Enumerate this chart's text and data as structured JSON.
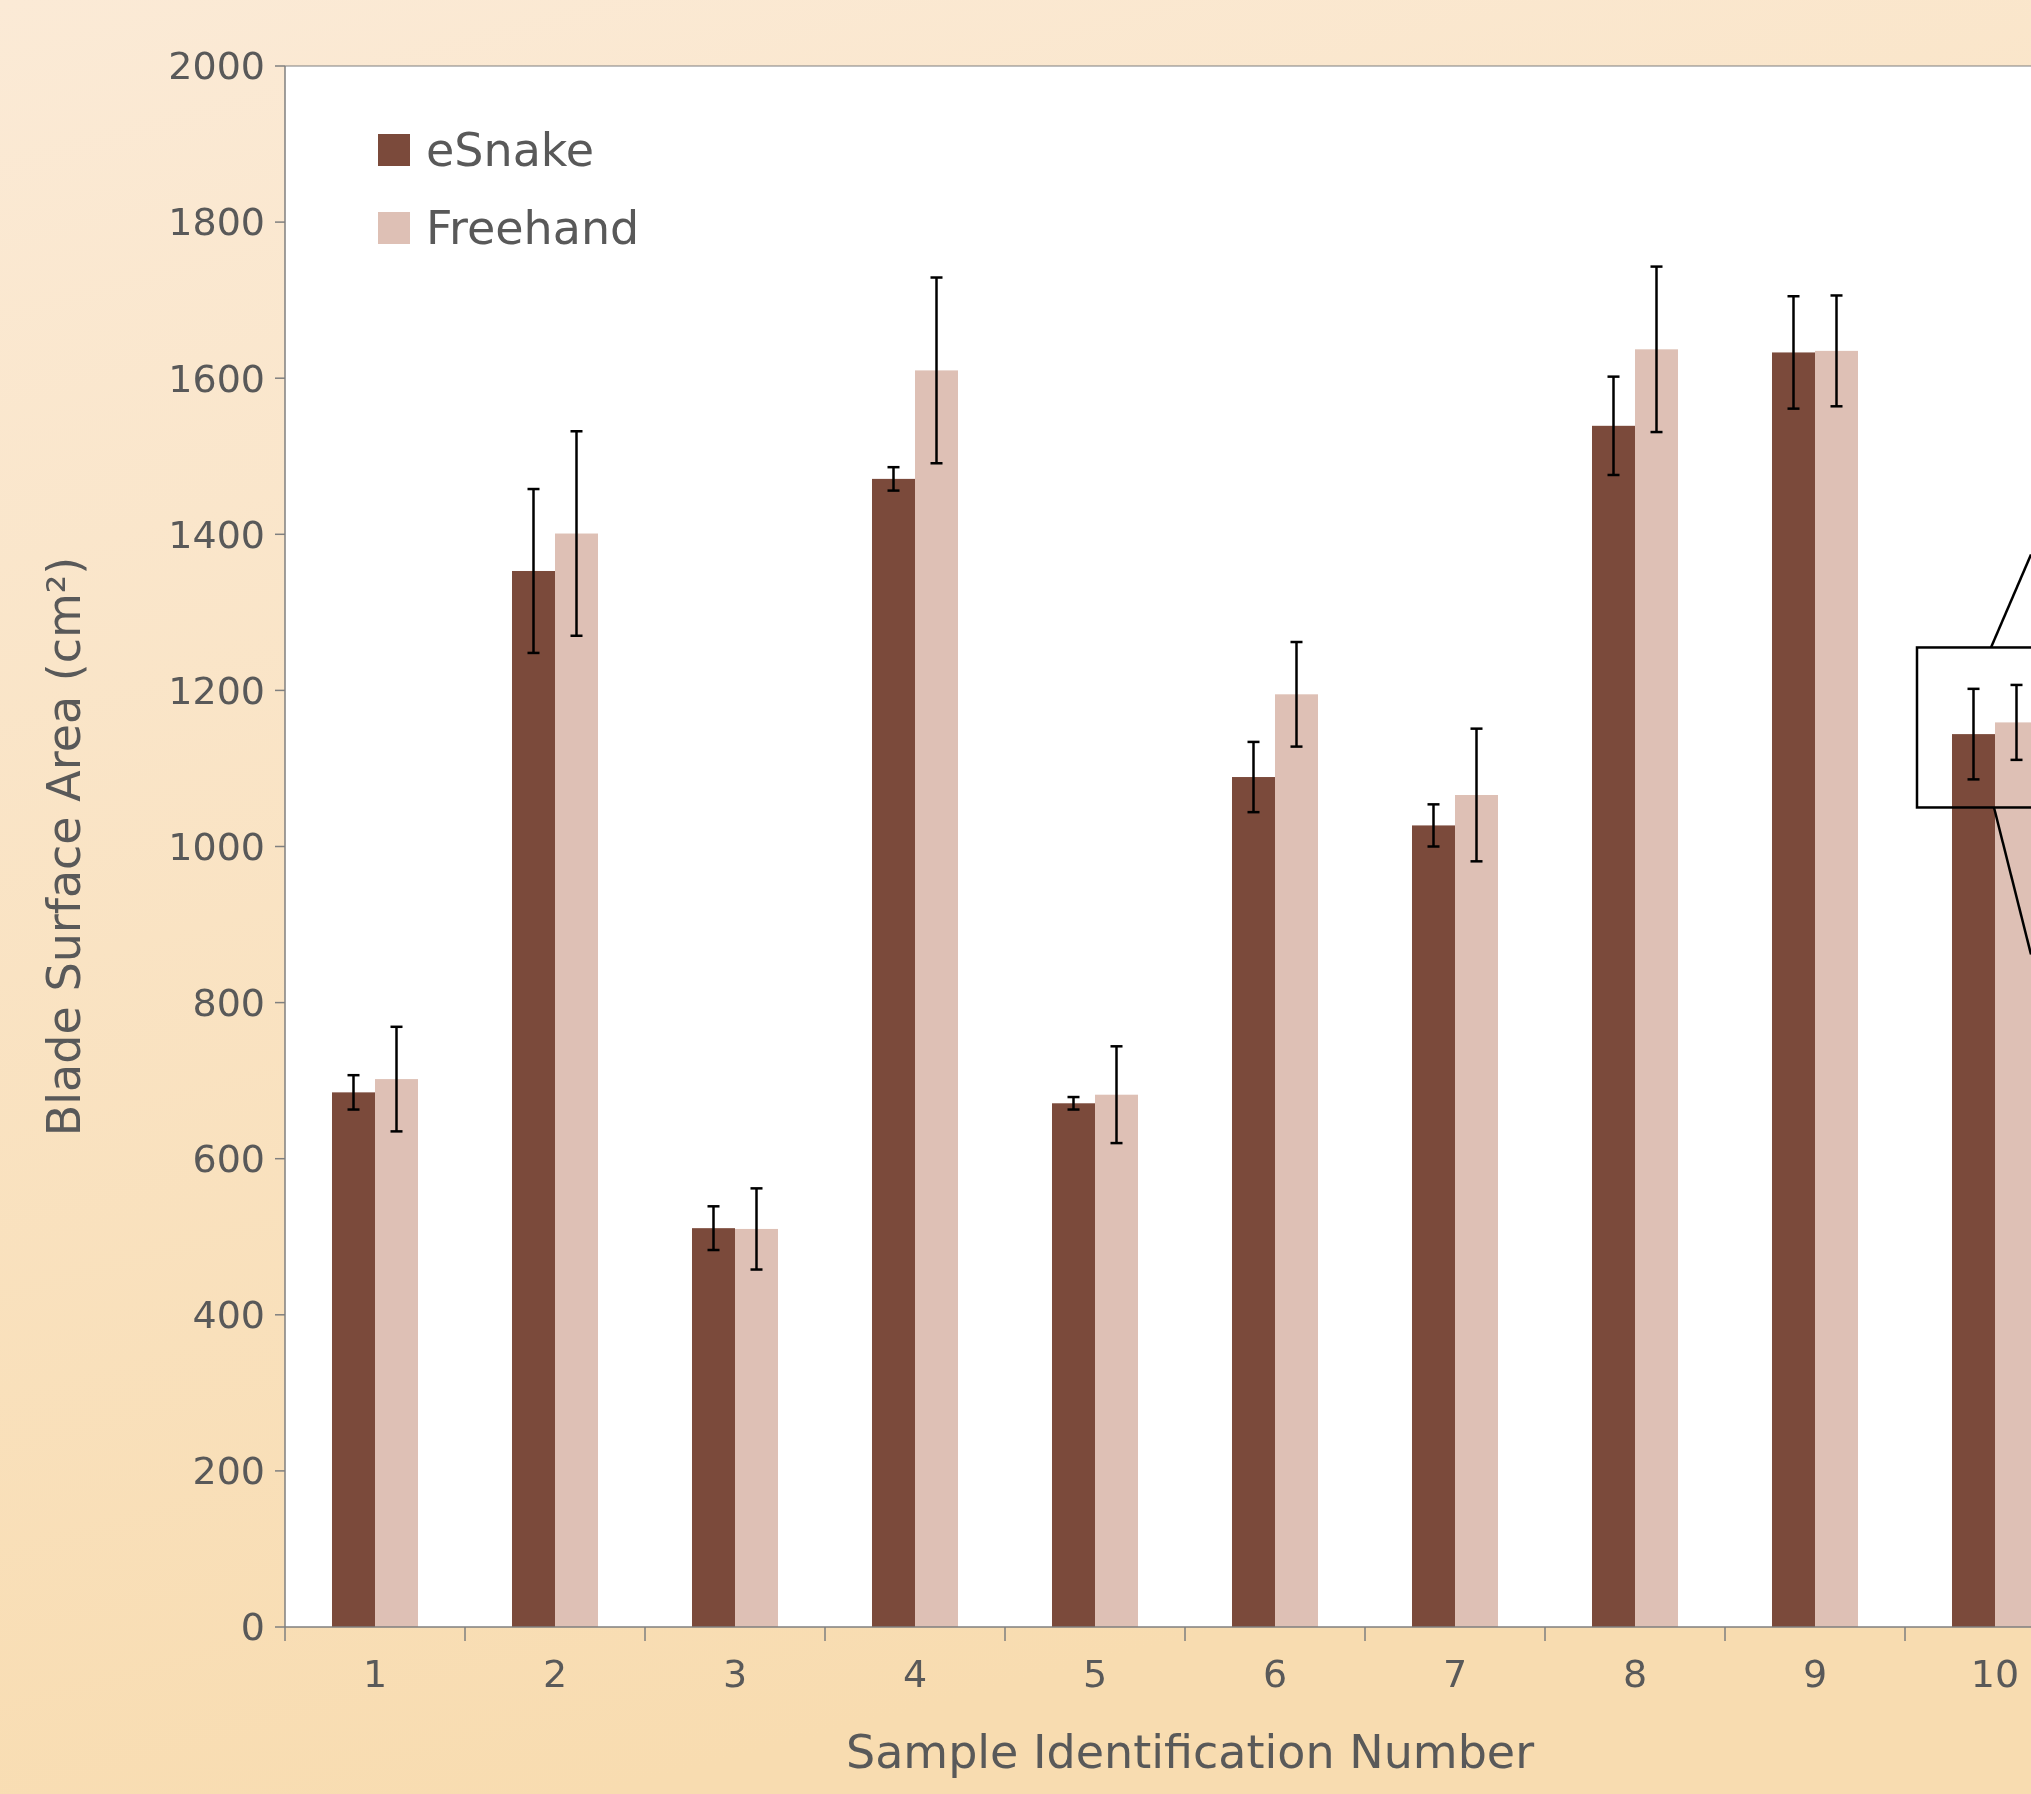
{
  "chart_data": {
    "type": "bar",
    "xlabel": "Sample Identification Number",
    "ylabel": "Blade Surface Area (cm²)",
    "categories": [
      "1",
      "2",
      "3",
      "4",
      "5",
      "6",
      "7",
      "8",
      "9",
      "10"
    ],
    "series": [
      {
        "name": "eSnake",
        "color": "#7b4a3b",
        "values": [
          685,
          1353,
          511,
          1471,
          671,
          1089,
          1027,
          1539,
          1633,
          1144
        ],
        "errors": [
          22,
          105,
          28,
          15,
          8,
          45,
          27,
          63,
          72,
          58
        ]
      },
      {
        "name": "Freehand",
        "color": "#dec0b5",
        "values": [
          702,
          1401,
          510,
          1610,
          682,
          1195,
          1066,
          1637,
          1635,
          1159
        ],
        "errors": [
          67,
          131,
          52,
          119,
          62,
          67,
          85,
          106,
          71,
          48
        ]
      }
    ],
    "ylim": [
      0,
      2000
    ],
    "yticks": [
      0,
      200,
      400,
      600,
      800,
      1000,
      1200,
      1400,
      1600,
      1800,
      2000
    ],
    "legend": "top left",
    "grid": false
  }
}
